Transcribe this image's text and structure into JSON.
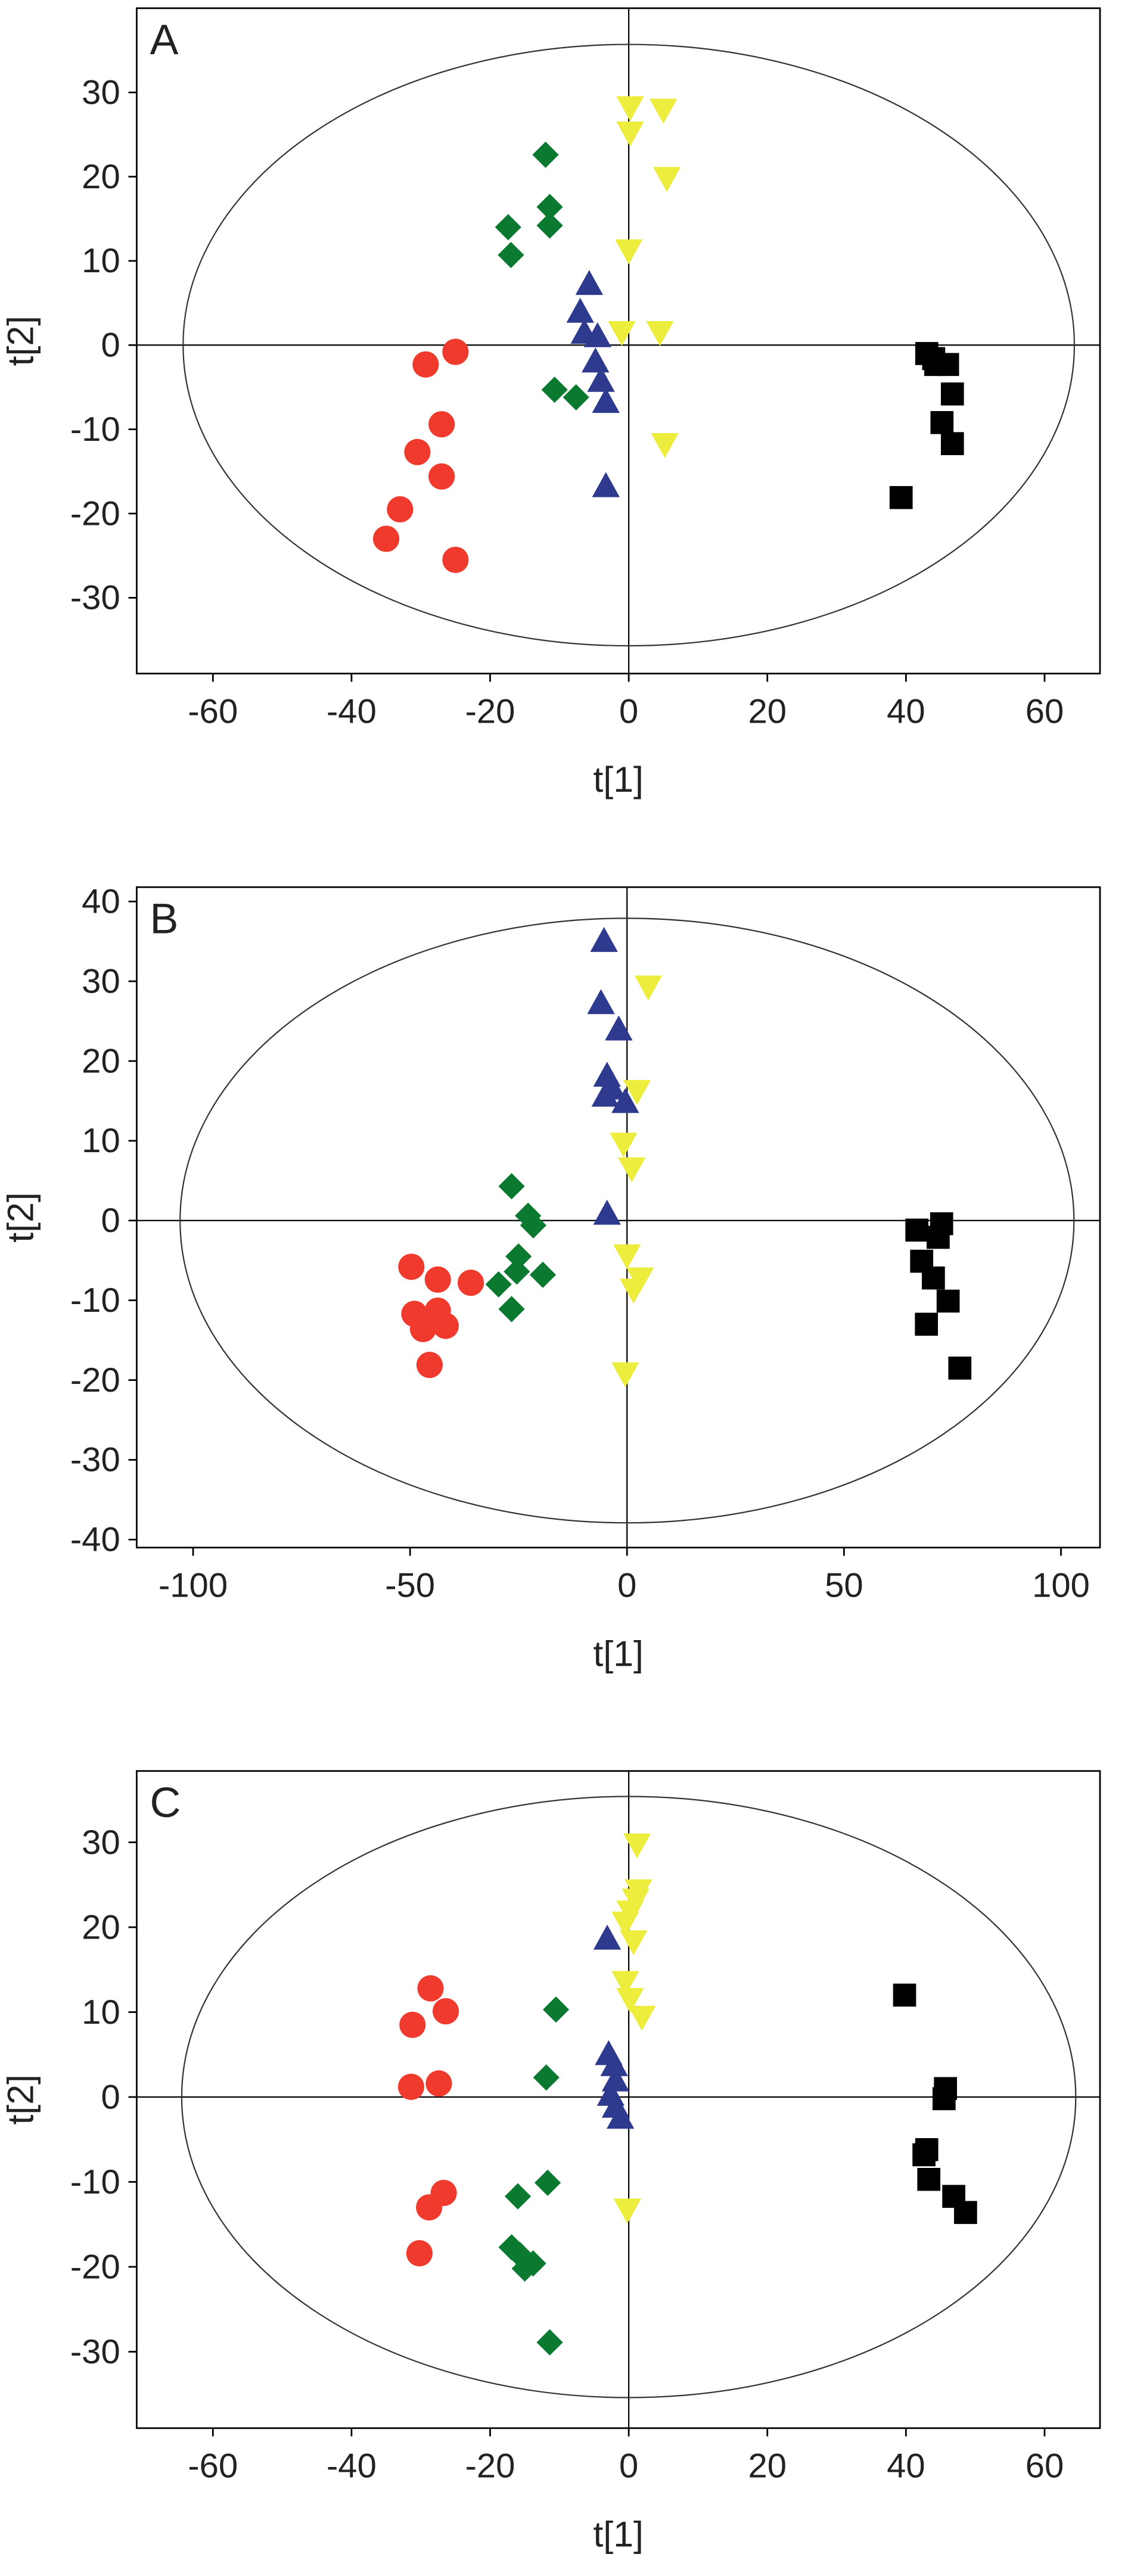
{
  "chart_data": [
    {
      "type": "scatter",
      "label": "A",
      "xlabel": "t[1]",
      "ylabel": "t[2]",
      "xlim": [
        -71,
        68
      ],
      "ylim": [
        -39,
        40
      ],
      "xticks": [
        -60,
        -40,
        -20,
        0,
        20,
        40,
        60
      ],
      "yticks": [
        -30,
        -20,
        -10,
        0,
        10,
        20,
        30
      ],
      "ellipse": [
        64.3,
        35.7
      ],
      "series": [
        {
          "color": "#f03a2e",
          "marker": "circle",
          "x": [
            -29.3,
            -25,
            -27,
            -30.5,
            -27,
            -33,
            -35,
            -25
          ],
          "y": [
            -2.3,
            -0.8,
            -9.4,
            -12.7,
            -15.6,
            -19.5,
            -23,
            -25.5
          ]
        },
        {
          "color": "#0b7a30",
          "marker": "diamond",
          "x": [
            -12,
            -17.4,
            -17,
            -11.4,
            -11.4,
            -10.7,
            -7.6
          ],
          "y": [
            22.6,
            14,
            10.7,
            16.4,
            14.2,
            -5.3,
            -6.2
          ]
        },
        {
          "color": "#2e3a8e",
          "marker": "triangle-up",
          "x": [
            -5.7,
            -7,
            -6.4,
            -4.5,
            -4.8,
            -4,
            -3.3,
            -3.3
          ],
          "y": [
            7.2,
            3.9,
            1.4,
            1,
            -2,
            -4.3,
            -6.8,
            -16.8
          ]
        },
        {
          "color": "#eded3e",
          "marker": "triangle-down",
          "x": [
            0.2,
            5,
            0.2,
            5.5,
            0,
            -1,
            4.5,
            5.2
          ],
          "y": [
            28.3,
            28,
            25.3,
            19.9,
            11.3,
            1.6,
            1.6,
            -11.7
          ]
        },
        {
          "color": "#000000",
          "marker": "square",
          "x": [
            43,
            44.3,
            46,
            46.7,
            45.2,
            46.7,
            39.3,
            44
          ],
          "y": [
            -1,
            -2.3,
            -2.3,
            -5.8,
            -9.2,
            -11.7,
            -18.1,
            -1.6
          ]
        }
      ]
    },
    {
      "type": "scatter",
      "label": "B",
      "xlabel": "t[1]",
      "ylabel": "t[2]",
      "xlim": [
        -113,
        109
      ],
      "ylim": [
        -41,
        41.8
      ],
      "xticks": [
        -100,
        -50,
        0,
        50,
        100
      ],
      "yticks": [
        -40,
        -30,
        -20,
        -10,
        0,
        10,
        20,
        30,
        40
      ],
      "ellipse": [
        103,
        37.9
      ],
      "series": [
        {
          "color": "#f03a2e",
          "marker": "circle",
          "x": [
            -49.7,
            -43.6,
            -36,
            -49,
            -43.6,
            -41.8,
            -45.5,
            -47
          ],
          "y": [
            -5.8,
            -7.4,
            -7.8,
            -11.7,
            -11.3,
            -13.2,
            -18.1,
            -13.6
          ]
        },
        {
          "color": "#0b7a30",
          "marker": "diamond",
          "x": [
            -26.6,
            -22.8,
            -21.6,
            -25,
            -19.4,
            -25.4,
            -29.6,
            -26.6
          ],
          "y": [
            4.3,
            0.6,
            -0.6,
            -4.5,
            -6.8,
            -6.4,
            -8,
            -11.1
          ]
        },
        {
          "color": "#2e3a8e",
          "marker": "triangle-up",
          "x": [
            -5.3,
            -6,
            -1.9,
            -4.6,
            -3.4,
            -0.4,
            -4.6,
            -5
          ],
          "y": [
            35,
            27.2,
            23.9,
            18.1,
            16.5,
            14.8,
            0.8,
            15.6
          ]
        },
        {
          "color": "#eded3e",
          "marker": "triangle-down",
          "x": [
            4.9,
            2.3,
            -0.8,
            1.1,
            0,
            3,
            1.5,
            -0.4
          ],
          "y": [
            29.4,
            16.3,
            9.7,
            6.6,
            -4.3,
            -7.2,
            -8.6,
            -19.1
          ]
        },
        {
          "color": "#000000",
          "marker": "square",
          "x": [
            66.8,
            72.5,
            67.9,
            70.6,
            74,
            69,
            76.7,
            71.7
          ],
          "y": [
            -1.2,
            -0.4,
            -5.1,
            -7.2,
            -10.1,
            -13,
            -18.5,
            -2.1
          ]
        }
      ]
    },
    {
      "type": "scatter",
      "label": "C",
      "xlabel": "t[1]",
      "ylabel": "t[2]",
      "xlim": [
        -71,
        68
      ],
      "ylim": [
        -39,
        38.4
      ],
      "xticks": [
        -60,
        -40,
        -20,
        0,
        20,
        40,
        60
      ],
      "yticks": [
        -30,
        -20,
        -10,
        0,
        10,
        20,
        30
      ],
      "ellipse": [
        64.5,
        35.4
      ],
      "series": [
        {
          "color": "#f03a2e",
          "marker": "circle",
          "x": [
            -28.6,
            -31.2,
            -26.4,
            -31.4,
            -27.4,
            -26.7,
            -28.8,
            -30.2
          ],
          "y": [
            12.8,
            8.5,
            10.1,
            1.2,
            1.6,
            -11.3,
            -13,
            -18.4
          ]
        },
        {
          "color": "#0b7a30",
          "marker": "diamond",
          "x": [
            -10.5,
            -11.9,
            -11.7,
            -16,
            -16.9,
            -15,
            -13.8,
            -11.4,
            -15.7
          ],
          "y": [
            10.3,
            2.3,
            -10.1,
            -11.7,
            -17.7,
            -20.2,
            -19.6,
            -28.9,
            -18.6
          ]
        },
        {
          "color": "#2e3a8e",
          "marker": "triangle-up",
          "x": [
            -3.1,
            -2.9,
            -2.1,
            -1.9,
            -2.6,
            -1.9,
            -1.2
          ],
          "y": [
            18.6,
            5,
            3.7,
            1.9,
            0.2,
            -1.2,
            -2.5
          ]
        },
        {
          "color": "#eded3e",
          "marker": "triangle-down",
          "x": [
            1.2,
            1,
            0.2,
            -0.5,
            0.7,
            -0.5,
            0.2,
            1.9,
            -0.2,
            1.4
          ],
          "y": [
            29.8,
            23.3,
            21.9,
            20.6,
            18.4,
            13.6,
            11.6,
            9.5,
            -13.2,
            24.4
          ]
        },
        {
          "color": "#000000",
          "marker": "square",
          "x": [
            39.8,
            45.7,
            45.5,
            42.6,
            43.3,
            46.9,
            48.6,
            43
          ],
          "y": [
            12,
            1,
            -0.2,
            -6.8,
            -9.7,
            -11.7,
            -13.6,
            -6.2
          ]
        }
      ]
    }
  ]
}
